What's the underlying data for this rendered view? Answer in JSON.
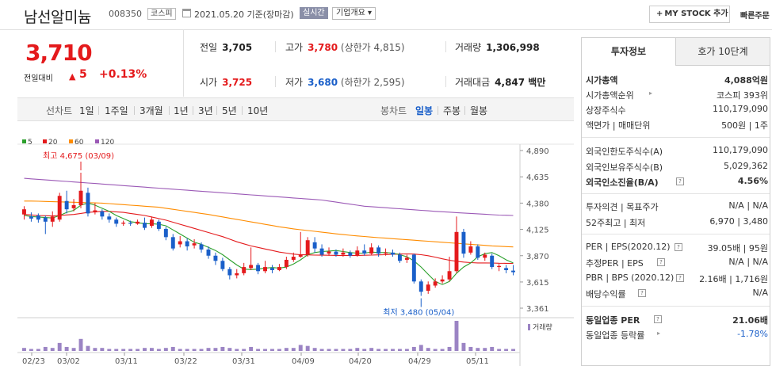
{
  "header": {
    "stock_name": "남선알미늄",
    "stock_code": "008350",
    "market": "코스피",
    "date": "2021.05.20 기준(장마감)",
    "realtime": "실시간",
    "company_info": "기업개요 ▾",
    "mystock_label": "MY STOCK 추가",
    "fast_label": "빠른주문"
  },
  "price": {
    "current": "3,710",
    "prev_label": "전일대비",
    "diff": "5",
    "rate": "+0.13%"
  },
  "quote": {
    "prev": {
      "label": "전일",
      "value": "3,705"
    },
    "high": {
      "label": "고가",
      "value": "3,780",
      "sub": "(상한가 4,815)"
    },
    "volume": {
      "label": "거래량",
      "value": "1,306,998"
    },
    "open": {
      "label": "시가",
      "value": "3,725"
    },
    "low": {
      "label": "저가",
      "value": "3,680",
      "sub": "(하한가 2,595)"
    },
    "amount": {
      "label": "거래대금",
      "value": "4,847 백만"
    }
  },
  "tabs": {
    "line_label": "선차트",
    "line_items": [
      "1일",
      "1주일",
      "3개월",
      "1년",
      "3년",
      "5년",
      "10년"
    ],
    "candle_label": "봉차트",
    "candle_items": [
      "일봉",
      "주봉",
      "월봉"
    ],
    "active_candle": "일봉"
  },
  "chart_data": {
    "type": "candlestick",
    "ma_legend": [
      {
        "name": "5",
        "color": "#2ca02c"
      },
      {
        "name": "20",
        "color": "#e41a1c"
      },
      {
        "name": "60",
        "color": "#ff8c00"
      },
      {
        "name": "120",
        "color": "#9b59b6"
      }
    ],
    "y_ticks": [
      "4,890",
      "4,635",
      "4,380",
      "4,125",
      "3,870",
      "3,615",
      "3,361"
    ],
    "ylim": [
      3361,
      4890
    ],
    "x_ticks": [
      "02/23",
      "03/02",
      "03/11",
      "03/22",
      "03/31",
      "04/09",
      "04/20",
      "04/29",
      "05/11"
    ],
    "high_annotation": "최고 4,675 (03/09)",
    "low_annotation": "최저 3,480 (05/04)",
    "volume_label": "거래량",
    "candles": [
      {
        "o": 4270,
        "c": 4320,
        "h": 4350,
        "l": 4220
      },
      {
        "o": 4250,
        "c": 4230,
        "h": 4290,
        "l": 4200
      },
      {
        "o": 4260,
        "c": 4220,
        "h": 4280,
        "l": 4190
      },
      {
        "o": 4240,
        "c": 4200,
        "h": 4260,
        "l": 4080
      },
      {
        "o": 4200,
        "c": 4250,
        "h": 4300,
        "l": 4150
      },
      {
        "o": 4220,
        "c": 4450,
        "h": 4480,
        "l": 4200
      },
      {
        "o": 4400,
        "c": 4320,
        "h": 4500,
        "l": 4280
      },
      {
        "o": 4330,
        "c": 4360,
        "h": 4420,
        "l": 4300
      },
      {
        "o": 4360,
        "c": 4500,
        "h": 4675,
        "l": 4330
      },
      {
        "o": 4480,
        "c": 4280,
        "h": 4530,
        "l": 4250
      },
      {
        "o": 4290,
        "c": 4310,
        "h": 4380,
        "l": 4270
      },
      {
        "o": 4300,
        "c": 4250,
        "h": 4320,
        "l": 4220
      },
      {
        "o": 4250,
        "c": 4220,
        "h": 4280,
        "l": 4190
      },
      {
        "o": 4220,
        "c": 4180,
        "h": 4240,
        "l": 4150
      },
      {
        "o": 4180,
        "c": 4190,
        "h": 4210,
        "l": 4160
      },
      {
        "o": 4190,
        "c": 4180,
        "h": 4210,
        "l": 4160
      },
      {
        "o": 4180,
        "c": 4200,
        "h": 4220,
        "l": 4170
      },
      {
        "o": 4190,
        "c": 4140,
        "h": 4240,
        "l": 4120
      },
      {
        "o": 4160,
        "c": 4220,
        "h": 4250,
        "l": 4140
      },
      {
        "o": 4200,
        "c": 4130,
        "h": 4220,
        "l": 4110
      },
      {
        "o": 4130,
        "c": 4050,
        "h": 4150,
        "l": 4020
      },
      {
        "o": 4050,
        "c": 3940,
        "h": 4080,
        "l": 3920
      },
      {
        "o": 3980,
        "c": 4010,
        "h": 4060,
        "l": 3950
      },
      {
        "o": 4010,
        "c": 3960,
        "h": 4040,
        "l": 3920
      },
      {
        "o": 3970,
        "c": 3990,
        "h": 4030,
        "l": 3940
      },
      {
        "o": 3980,
        "c": 3930,
        "h": 4000,
        "l": 3900
      },
      {
        "o": 3930,
        "c": 3870,
        "h": 3960,
        "l": 3840
      },
      {
        "o": 3870,
        "c": 3820,
        "h": 3900,
        "l": 3780
      },
      {
        "o": 3820,
        "c": 3740,
        "h": 3850,
        "l": 3720
      },
      {
        "o": 3740,
        "c": 3680,
        "h": 3760,
        "l": 3640
      },
      {
        "o": 3680,
        "c": 3700,
        "h": 3740,
        "l": 3650
      },
      {
        "o": 3700,
        "c": 3760,
        "h": 3800,
        "l": 3680
      },
      {
        "o": 3750,
        "c": 3780,
        "h": 3950,
        "l": 3730
      },
      {
        "o": 3780,
        "c": 3720,
        "h": 3800,
        "l": 3690
      },
      {
        "o": 3720,
        "c": 3760,
        "h": 3820,
        "l": 3700
      },
      {
        "o": 3750,
        "c": 3730,
        "h": 3780,
        "l": 3700
      },
      {
        "o": 3730,
        "c": 3760,
        "h": 3790,
        "l": 3720
      },
      {
        "o": 3760,
        "c": 3830,
        "h": 3860,
        "l": 3740
      },
      {
        "o": 3830,
        "c": 3860,
        "h": 3900,
        "l": 3810
      },
      {
        "o": 3860,
        "c": 3880,
        "h": 4100,
        "l": 3850
      },
      {
        "o": 3880,
        "c": 4020,
        "h": 4050,
        "l": 3860
      },
      {
        "o": 4000,
        "c": 3940,
        "h": 4050,
        "l": 3900
      },
      {
        "o": 3940,
        "c": 3880,
        "h": 3980,
        "l": 3860
      },
      {
        "o": 3890,
        "c": 3910,
        "h": 3950,
        "l": 3870
      },
      {
        "o": 3910,
        "c": 3880,
        "h": 3930,
        "l": 3860
      },
      {
        "o": 3880,
        "c": 3900,
        "h": 3940,
        "l": 3860
      },
      {
        "o": 3900,
        "c": 3870,
        "h": 3920,
        "l": 3850
      },
      {
        "o": 3870,
        "c": 3920,
        "h": 3960,
        "l": 3860
      },
      {
        "o": 3920,
        "c": 3890,
        "h": 3980,
        "l": 3870
      },
      {
        "o": 3890,
        "c": 3950,
        "h": 3990,
        "l": 3880
      },
      {
        "o": 3950,
        "c": 3890,
        "h": 3970,
        "l": 3860
      },
      {
        "o": 3890,
        "c": 3900,
        "h": 3940,
        "l": 3870
      },
      {
        "o": 3900,
        "c": 3880,
        "h": 3930,
        "l": 3860
      },
      {
        "o": 3880,
        "c": 3820,
        "h": 3900,
        "l": 3800
      },
      {
        "o": 3830,
        "c": 3850,
        "h": 3880,
        "l": 3800
      },
      {
        "o": 3880,
        "c": 3620,
        "h": 3890,
        "l": 3600
      },
      {
        "o": 3620,
        "c": 3520,
        "h": 3640,
        "l": 3480
      },
      {
        "o": 3530,
        "c": 3590,
        "h": 3620,
        "l": 3500
      },
      {
        "o": 3580,
        "c": 3620,
        "h": 3650,
        "l": 3560
      },
      {
        "o": 3620,
        "c": 3640,
        "h": 3680,
        "l": 3600
      },
      {
        "o": 3640,
        "c": 3720,
        "h": 3860,
        "l": 3620
      },
      {
        "o": 3720,
        "c": 4100,
        "h": 4250,
        "l": 3700
      },
      {
        "o": 4100,
        "c": 3890,
        "h": 4130,
        "l": 3850
      },
      {
        "o": 3900,
        "c": 3960,
        "h": 4010,
        "l": 3880
      },
      {
        "o": 3960,
        "c": 3850,
        "h": 3980,
        "l": 3830
      },
      {
        "o": 3850,
        "c": 3880,
        "h": 3900,
        "l": 3820
      },
      {
        "o": 3870,
        "c": 3760,
        "h": 3890,
        "l": 3740
      },
      {
        "o": 3760,
        "c": 3770,
        "h": 3790,
        "l": 3720
      },
      {
        "o": 3750,
        "c": 3730,
        "h": 3780,
        "l": 3700
      },
      {
        "o": 3725,
        "c": 3710,
        "h": 3780,
        "l": 3680
      }
    ],
    "volumes": [
      3,
      2,
      2,
      4,
      3,
      8,
      4,
      3,
      12,
      5,
      3,
      3,
      2,
      2,
      2,
      2,
      2,
      3,
      3,
      2,
      3,
      4,
      2,
      2,
      2,
      2,
      3,
      3,
      4,
      3,
      2,
      2,
      4,
      2,
      2,
      2,
      2,
      3,
      3,
      6,
      5,
      3,
      2,
      2,
      2,
      2,
      2,
      3,
      2,
      3,
      2,
      2,
      2,
      2,
      2,
      4,
      6,
      3,
      2,
      2,
      4,
      30,
      8,
      4,
      3,
      3,
      4,
      2,
      2,
      2
    ],
    "ma5": [
      4260,
      4250,
      4245,
      4240,
      4235,
      4260,
      4290,
      4310,
      4360,
      4380,
      4360,
      4330,
      4300,
      4260,
      4230,
      4200,
      4190,
      4180,
      4180,
      4175,
      4160,
      4120,
      4080,
      4040,
      4000,
      3980,
      3950,
      3920,
      3880,
      3830,
      3780,
      3740,
      3735,
      3740,
      3750,
      3755,
      3750,
      3760,
      3790,
      3830,
      3880,
      3900,
      3910,
      3915,
      3920,
      3910,
      3900,
      3895,
      3895,
      3905,
      3900,
      3900,
      3895,
      3880,
      3860,
      3820,
      3760,
      3690,
      3620,
      3590,
      3620,
      3700,
      3760,
      3800,
      3860,
      3890,
      3900,
      3870,
      3830,
      3800
    ],
    "ma20": [
      4270,
      4265,
      4260,
      4258,
      4255,
      4260,
      4265,
      4270,
      4280,
      4290,
      4295,
      4300,
      4300,
      4295,
      4290,
      4280,
      4270,
      4260,
      4245,
      4230,
      4215,
      4195,
      4175,
      4155,
      4135,
      4115,
      4095,
      4075,
      4055,
      4030,
      4005,
      3985,
      3965,
      3950,
      3935,
      3920,
      3905,
      3895,
      3885,
      3880,
      3878,
      3876,
      3875,
      3874,
      3873,
      3872,
      3872,
      3873,
      3874,
      3876,
      3878,
      3880,
      3884,
      3886,
      3887,
      3886,
      3880,
      3870,
      3856,
      3840,
      3826,
      3816,
      3808,
      3803,
      3800,
      3800,
      3799,
      3797,
      3796,
      3795
    ],
    "ma60": [
      4400,
      4400,
      4398,
      4396,
      4394,
      4392,
      4390,
      4388,
      4386,
      4384,
      4382,
      4380,
      4375,
      4370,
      4365,
      4360,
      4355,
      4350,
      4345,
      4340,
      4330,
      4320,
      4310,
      4300,
      4290,
      4280,
      4270,
      4258,
      4246,
      4234,
      4222,
      4210,
      4198,
      4186,
      4174,
      4162,
      4150,
      4140,
      4130,
      4122,
      4114,
      4106,
      4098,
      4090,
      4082,
      4075,
      4068,
      4062,
      4056,
      4050,
      4045,
      4040,
      4035,
      4030,
      4025,
      4020,
      4015,
      4010,
      4005,
      4000,
      3995,
      3990,
      3985,
      3980,
      3975,
      3970,
      3965,
      3962,
      3958,
      3955
    ],
    "ma120": [
      4620,
      4615,
      4610,
      4605,
      4600,
      4595,
      4590,
      4585,
      4580,
      4575,
      4570,
      4565,
      4560,
      4555,
      4550,
      4545,
      4540,
      4535,
      4530,
      4525,
      4520,
      4515,
      4510,
      4505,
      4500,
      4495,
      4490,
      4485,
      4480,
      4475,
      4470,
      4465,
      4460,
      4455,
      4450,
      4445,
      4440,
      4435,
      4430,
      4425,
      4420,
      4415,
      4410,
      4400,
      4390,
      4380,
      4370,
      4360,
      4350,
      4345,
      4340,
      4335,
      4330,
      4325,
      4320,
      4315,
      4310,
      4305,
      4300,
      4296,
      4292,
      4288,
      4284,
      4280,
      4276,
      4272,
      4268,
      4264,
      4262,
      4260
    ]
  },
  "panel": {
    "tab_on": "투자정보",
    "tab_off": "호가 10단계",
    "market_cap": {
      "k": "시가총액",
      "v": "4,088억원"
    },
    "cap_rank": {
      "k": "시가총액순위",
      "v": "코스피 393위"
    },
    "shares": {
      "k": "상장주식수",
      "v": "110,179,090"
    },
    "par": {
      "k": "액면가 | 매매단위",
      "v": "500원 | 1주"
    },
    "foreign_limit": {
      "k": "외국인한도주식수(A)",
      "v": "110,179,090"
    },
    "foreign_hold": {
      "k": "외국인보유주식수(B)",
      "v": "5,029,362"
    },
    "foreign_rate": {
      "k": "외국인소진율(B/A)",
      "v": "4.56%"
    },
    "opinion": {
      "k": "투자의견 | 목표주가",
      "v": "N/A | N/A"
    },
    "week52": {
      "k": "52주최고 | 최저",
      "v": "6,970 | 3,480"
    },
    "per": {
      "k": "PER | EPS(2020.12)",
      "v": "39.05배 | 95원"
    },
    "est_per": {
      "k": "추정PER | EPS",
      "v": "N/A | N/A"
    },
    "pbr": {
      "k": "PBR | BPS (2020.12)",
      "v": "2.16배 | 1,716원"
    },
    "div": {
      "k": "배당수익률",
      "v": "N/A"
    },
    "ind_per": {
      "k": "동일업종 PER",
      "v": "21.06배"
    },
    "ind_rate": {
      "k": "동일업종 등락률",
      "v": "-1.78%"
    }
  }
}
